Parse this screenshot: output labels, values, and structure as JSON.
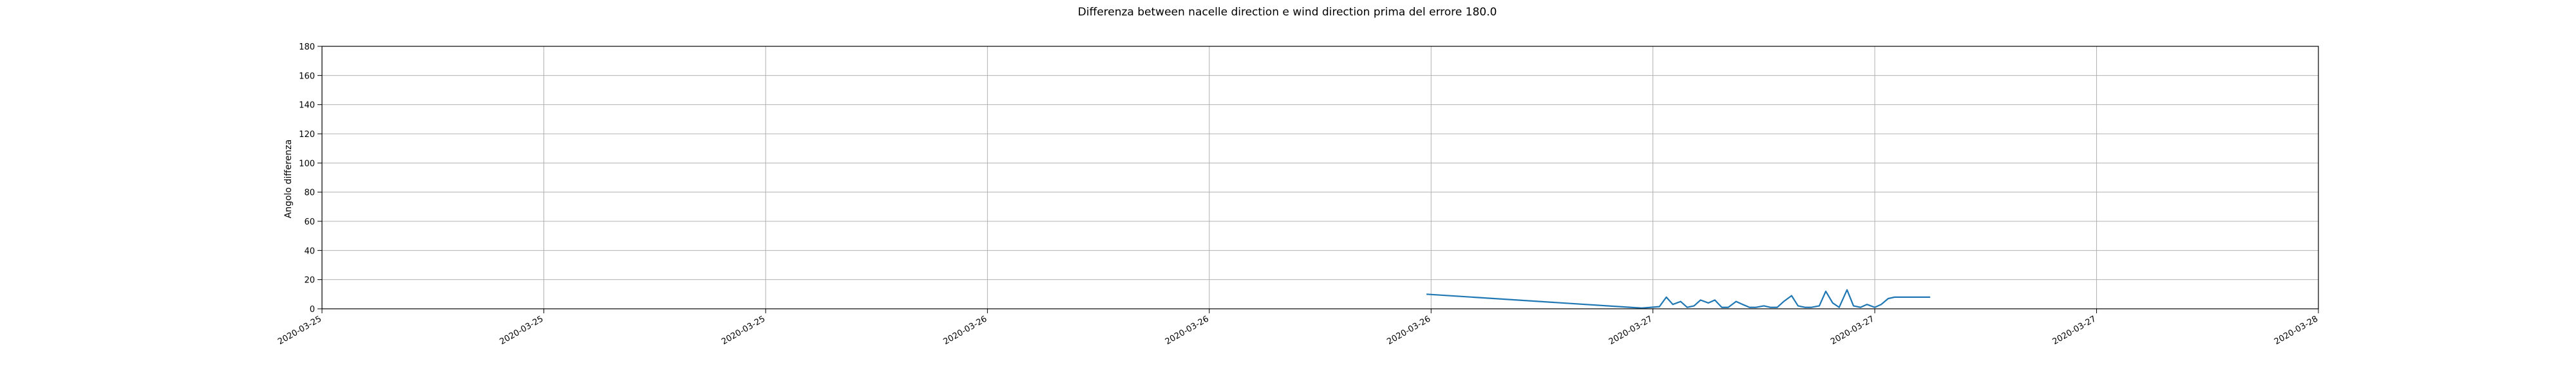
{
  "chart_data": {
    "type": "line",
    "title": "Differenza between nacelle direction e wind direction prima del errore 180.0",
    "xlabel": "",
    "ylabel": "Angolo differenza",
    "ylim": [
      0,
      180
    ],
    "yticks": [
      0,
      20,
      40,
      60,
      80,
      100,
      120,
      140,
      160,
      180
    ],
    "xlim": [
      "2020-03-25T00:00",
      "2020-03-28T00:00"
    ],
    "xtick_labels": [
      "2020-03-25",
      "2020-03-25",
      "2020-03-25",
      "2020-03-26",
      "2020-03-26",
      "2020-03-26",
      "2020-03-27",
      "2020-03-27",
      "2020-03-27",
      "2020-03-28"
    ],
    "grid": true,
    "line_color": "#1f77b4",
    "series": [
      {
        "x": [
          "2020-03-26T15:50",
          "2020-03-26T23:12",
          "2020-03-26T23:36",
          "2020-03-27T00:14",
          "2020-03-27T00:29",
          "2020-03-27T00:43",
          "2020-03-27T01:00",
          "2020-03-27T01:14",
          "2020-03-27T01:29",
          "2020-03-27T01:43",
          "2020-03-27T02:00",
          "2020-03-27T02:14",
          "2020-03-27T02:29",
          "2020-03-27T02:43",
          "2020-03-27T03:00",
          "2020-03-27T03:14",
          "2020-03-27T03:29",
          "2020-03-27T03:43",
          "2020-03-27T04:00",
          "2020-03-27T04:14",
          "2020-03-27T04:29",
          "2020-03-27T04:43",
          "2020-03-27T05:00",
          "2020-03-27T05:14",
          "2020-03-27T05:29",
          "2020-03-27T05:43",
          "2020-03-27T06:00",
          "2020-03-27T06:14",
          "2020-03-27T06:29",
          "2020-03-27T06:43",
          "2020-03-27T07:00",
          "2020-03-27T07:14",
          "2020-03-27T07:29",
          "2020-03-27T07:43",
          "2020-03-27T08:00",
          "2020-03-27T08:14",
          "2020-03-27T08:29",
          "2020-03-27T08:43",
          "2020-03-27T09:00",
          "2020-03-27T09:14",
          "2020-03-27T09:29",
          "2020-03-27T09:43",
          "2020-03-27T10:00"
        ],
        "y": [
          10,
          1,
          0.5,
          1.5,
          8,
          3,
          5,
          1,
          2,
          6,
          4,
          6,
          1,
          1,
          5,
          3,
          1,
          1,
          2,
          1,
          1,
          5,
          9,
          2,
          1,
          1,
          2,
          12,
          4,
          1,
          13,
          2,
          1,
          3,
          1,
          3,
          7,
          8,
          8,
          8,
          8,
          8,
          8
        ]
      }
    ]
  }
}
